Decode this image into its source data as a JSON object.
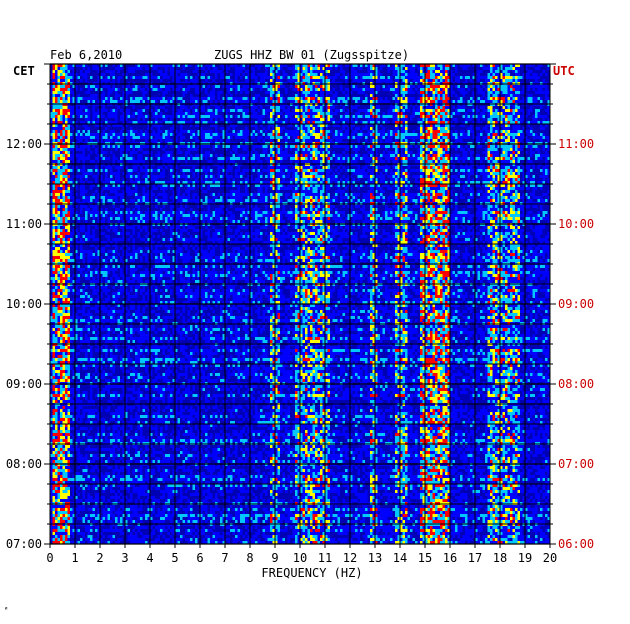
{
  "header": {
    "date": "Feb 6,2010",
    "station": "ZUGS HHZ BW 01 (Zugsspitze)",
    "left_tz": "CET",
    "right_tz": "UTC"
  },
  "footer_mark": "ᴻ",
  "chart_data": {
    "type": "heatmap",
    "title": "ZUGS HHZ BW 01 (Zugsspitze)",
    "xlabel": "FREQUENCY (HZ)",
    "ylabel": "",
    "xlim": [
      0,
      20
    ],
    "x_ticks": [
      "0",
      "1",
      "2",
      "3",
      "4",
      "5",
      "6",
      "7",
      "8",
      "9",
      "10",
      "11",
      "12",
      "13",
      "14",
      "15",
      "16",
      "17",
      "18",
      "19",
      "20"
    ],
    "y_ticks_left": [
      "07:00",
      "08:00",
      "09:00",
      "10:00",
      "11:00",
      "12:00"
    ],
    "y_ticks_right": [
      "06:00",
      "07:00",
      "08:00",
      "09:00",
      "10:00",
      "11:00"
    ],
    "time_range_cet": [
      "07:00",
      "13:00"
    ],
    "grid": true,
    "colors": {
      "background": "#0000b4",
      "low": "#0000ff",
      "mid": "#00c8ff",
      "high": "#ffff00",
      "peak": "#ff0000",
      "grid": "#000000",
      "utc_label": "#cc0000"
    },
    "energy_bands_hz": [
      {
        "from": 0.1,
        "to": 0.8,
        "level": "high"
      },
      {
        "from": 8.8,
        "to": 9.2,
        "level": "mid"
      },
      {
        "from": 9.8,
        "to": 11.2,
        "level": "mid"
      },
      {
        "from": 12.8,
        "to": 13.1,
        "level": "mid"
      },
      {
        "from": 13.8,
        "to": 14.3,
        "level": "mid"
      },
      {
        "from": 14.8,
        "to": 16.0,
        "level": "high"
      },
      {
        "from": 17.5,
        "to": 18.8,
        "level": "mid"
      }
    ]
  }
}
